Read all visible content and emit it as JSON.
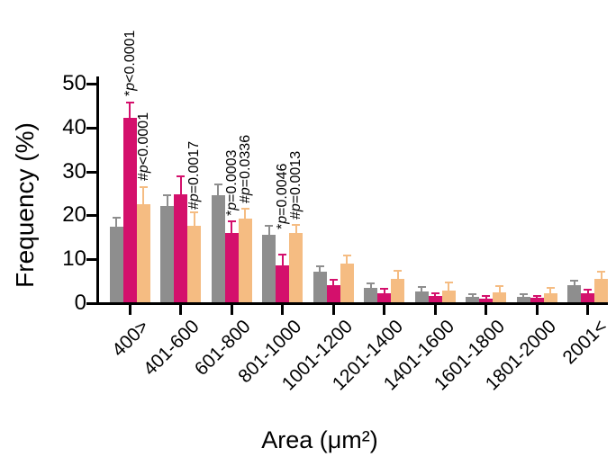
{
  "chart_data": {
    "type": "bar",
    "title": "",
    "xlabel": "Area (μm²)",
    "ylabel": "Frequency (%)",
    "ylim": [
      0,
      50
    ],
    "yticks": [
      0,
      10,
      20,
      30,
      40,
      50
    ],
    "grid": false,
    "legend_position": "none",
    "error_bars": "upper-sem-with-caps",
    "categories": [
      "400>",
      "401-600",
      "601-800",
      "801-1000",
      "1001-1200",
      "1201-1400",
      "1401-1600",
      "1601-1800",
      "1801-2000",
      "2001<"
    ],
    "series": [
      {
        "name": "gray",
        "color": "#8E8E8E",
        "values": [
          17.3,
          22.0,
          24.3,
          15.3,
          7.0,
          3.3,
          2.4,
          1.3,
          1.3,
          3.8
        ],
        "errors": [
          1.7,
          2.2,
          2.4,
          1.9,
          1.0,
          0.7,
          0.9,
          0.4,
          0.4,
          0.9
        ]
      },
      {
        "name": "magenta",
        "color": "#D4106C",
        "values": [
          42.0,
          24.6,
          15.7,
          8.3,
          3.8,
          2.0,
          1.4,
          0.9,
          1.0,
          2.0
        ],
        "errors": [
          3.3,
          3.8,
          2.5,
          2.3,
          1.2,
          0.9,
          0.5,
          0.3,
          0.3,
          0.7
        ]
      },
      {
        "name": "orange",
        "color": "#F5BC82",
        "values": [
          22.3,
          17.4,
          19.0,
          15.8,
          8.8,
          5.3,
          2.7,
          2.2,
          2.0,
          5.4
        ],
        "errors": [
          3.8,
          2.8,
          2.1,
          1.7,
          1.7,
          1.7,
          1.6,
          1.2,
          1.1,
          1.3
        ]
      }
    ],
    "annotations": [
      {
        "text": "*p<0.0001",
        "category": 0,
        "series": 1,
        "y": 47.0
      },
      {
        "text": "#p<0.0001",
        "category": 0,
        "series": 2,
        "y": 27.6
      },
      {
        "text": "#p=0.0017",
        "category": 1,
        "series": 2,
        "y": 21.2
      },
      {
        "text": "*p=0.0003",
        "category": 2,
        "series": 1,
        "y": 19.6
      },
      {
        "text": "#p=0.0336",
        "category": 2,
        "series": 2,
        "y": 22.6
      },
      {
        "text": "*p=0.0046",
        "category": 3,
        "series": 1,
        "y": 16.6
      },
      {
        "text": "#p=0.0013",
        "category": 3,
        "series": 2,
        "y": 18.8
      }
    ]
  }
}
